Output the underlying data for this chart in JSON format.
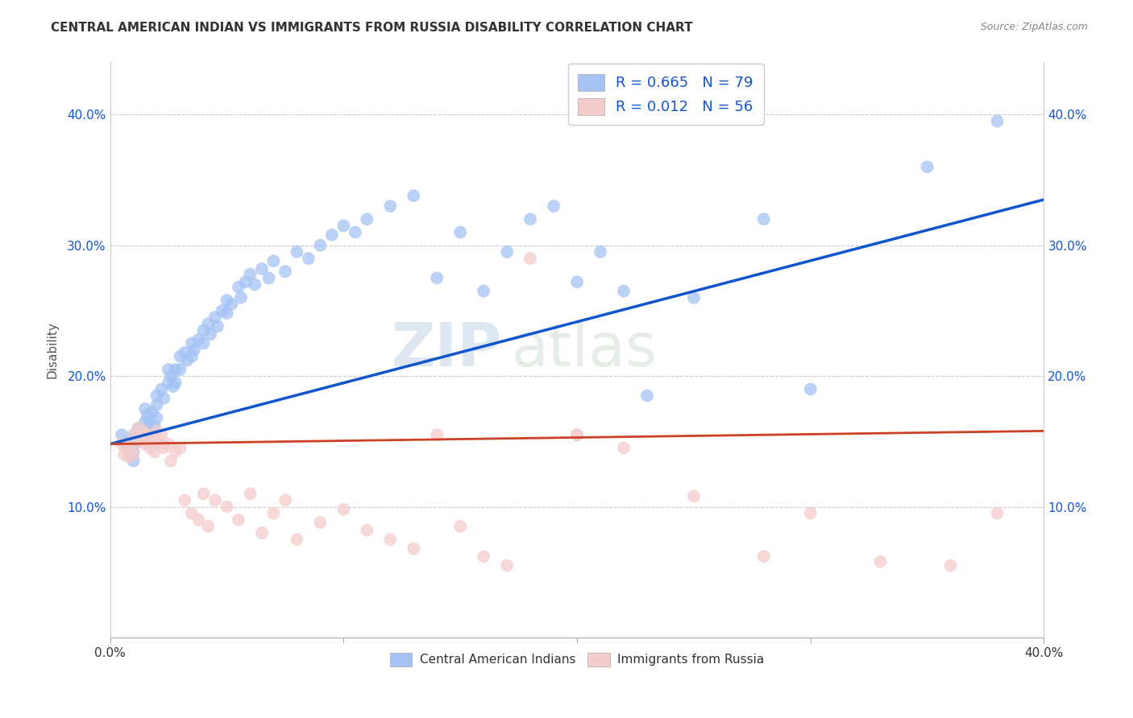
{
  "title": "CENTRAL AMERICAN INDIAN VS IMMIGRANTS FROM RUSSIA DISABILITY CORRELATION CHART",
  "source": "Source: ZipAtlas.com",
  "ylabel": "Disability",
  "y_ticks": [
    0.1,
    0.2,
    0.3,
    0.4
  ],
  "y_tick_labels": [
    "10.0%",
    "20.0%",
    "30.0%",
    "40.0%"
  ],
  "x_ticks": [
    0.0,
    0.1,
    0.2,
    0.3,
    0.4
  ],
  "x_tick_labels_show": [
    "0.0%",
    "",
    "",
    "",
    "40.0%"
  ],
  "xmin": 0.0,
  "xmax": 0.4,
  "ymin": 0.0,
  "ymax": 0.44,
  "legend1_label": "R = 0.665   N = 79",
  "legend2_label": "R = 0.012   N = 56",
  "series1_name": "Central American Indians",
  "series2_name": "Immigrants from Russia",
  "series1_color": "#a4c2f4",
  "series2_color": "#f4cccc",
  "series1_line_color": "#1155cc",
  "series2_line_color": "#cc4125",
  "watermark_zip": "ZIP",
  "watermark_atlas": "atlas",
  "blue_x": [
    0.005,
    0.007,
    0.008,
    0.009,
    0.01,
    0.01,
    0.01,
    0.01,
    0.012,
    0.012,
    0.015,
    0.015,
    0.016,
    0.016,
    0.017,
    0.018,
    0.019,
    0.02,
    0.02,
    0.02,
    0.022,
    0.023,
    0.025,
    0.025,
    0.026,
    0.027,
    0.028,
    0.028,
    0.03,
    0.03,
    0.032,
    0.033,
    0.035,
    0.035,
    0.036,
    0.038,
    0.04,
    0.04,
    0.042,
    0.043,
    0.045,
    0.046,
    0.048,
    0.05,
    0.05,
    0.052,
    0.055,
    0.056,
    0.058,
    0.06,
    0.062,
    0.065,
    0.068,
    0.07,
    0.075,
    0.08,
    0.085,
    0.09,
    0.095,
    0.1,
    0.105,
    0.11,
    0.12,
    0.13,
    0.14,
    0.15,
    0.16,
    0.17,
    0.18,
    0.19,
    0.2,
    0.21,
    0.22,
    0.23,
    0.25,
    0.28,
    0.3,
    0.35,
    0.38
  ],
  "blue_y": [
    0.155,
    0.145,
    0.15,
    0.14,
    0.155,
    0.148,
    0.142,
    0.135,
    0.16,
    0.15,
    0.175,
    0.165,
    0.17,
    0.158,
    0.165,
    0.172,
    0.162,
    0.185,
    0.178,
    0.168,
    0.19,
    0.183,
    0.205,
    0.195,
    0.2,
    0.192,
    0.205,
    0.195,
    0.215,
    0.205,
    0.218,
    0.212,
    0.225,
    0.215,
    0.22,
    0.228,
    0.235,
    0.225,
    0.24,
    0.232,
    0.245,
    0.238,
    0.25,
    0.258,
    0.248,
    0.255,
    0.268,
    0.26,
    0.272,
    0.278,
    0.27,
    0.282,
    0.275,
    0.288,
    0.28,
    0.295,
    0.29,
    0.3,
    0.308,
    0.315,
    0.31,
    0.32,
    0.33,
    0.338,
    0.275,
    0.31,
    0.265,
    0.295,
    0.32,
    0.33,
    0.272,
    0.295,
    0.265,
    0.185,
    0.26,
    0.32,
    0.19,
    0.36,
    0.395
  ],
  "pink_x": [
    0.005,
    0.006,
    0.007,
    0.008,
    0.009,
    0.01,
    0.01,
    0.01,
    0.012,
    0.013,
    0.014,
    0.015,
    0.016,
    0.017,
    0.018,
    0.019,
    0.02,
    0.021,
    0.022,
    0.023,
    0.025,
    0.026,
    0.028,
    0.03,
    0.032,
    0.035,
    0.038,
    0.04,
    0.042,
    0.045,
    0.05,
    0.055,
    0.06,
    0.065,
    0.07,
    0.075,
    0.08,
    0.09,
    0.1,
    0.11,
    0.12,
    0.13,
    0.14,
    0.15,
    0.16,
    0.17,
    0.18,
    0.2,
    0.22,
    0.25,
    0.28,
    0.3,
    0.33,
    0.36,
    0.38,
    0.2
  ],
  "pink_y": [
    0.148,
    0.14,
    0.145,
    0.138,
    0.142,
    0.155,
    0.148,
    0.14,
    0.16,
    0.152,
    0.158,
    0.148,
    0.155,
    0.145,
    0.152,
    0.142,
    0.158,
    0.148,
    0.155,
    0.145,
    0.148,
    0.135,
    0.142,
    0.145,
    0.105,
    0.095,
    0.09,
    0.11,
    0.085,
    0.105,
    0.1,
    0.09,
    0.11,
    0.08,
    0.095,
    0.105,
    0.075,
    0.088,
    0.098,
    0.082,
    0.075,
    0.068,
    0.155,
    0.085,
    0.062,
    0.055,
    0.29,
    0.155,
    0.145,
    0.108,
    0.062,
    0.095,
    0.058,
    0.055,
    0.095,
    0.155
  ]
}
